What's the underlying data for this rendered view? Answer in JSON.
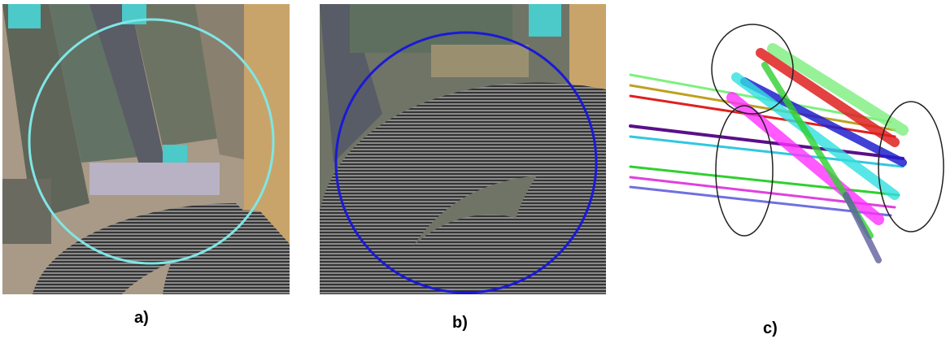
{
  "figure": {
    "panels": [
      {
        "label": "a)"
      },
      {
        "label": "b)"
      },
      {
        "label": "c)"
      }
    ]
  }
}
